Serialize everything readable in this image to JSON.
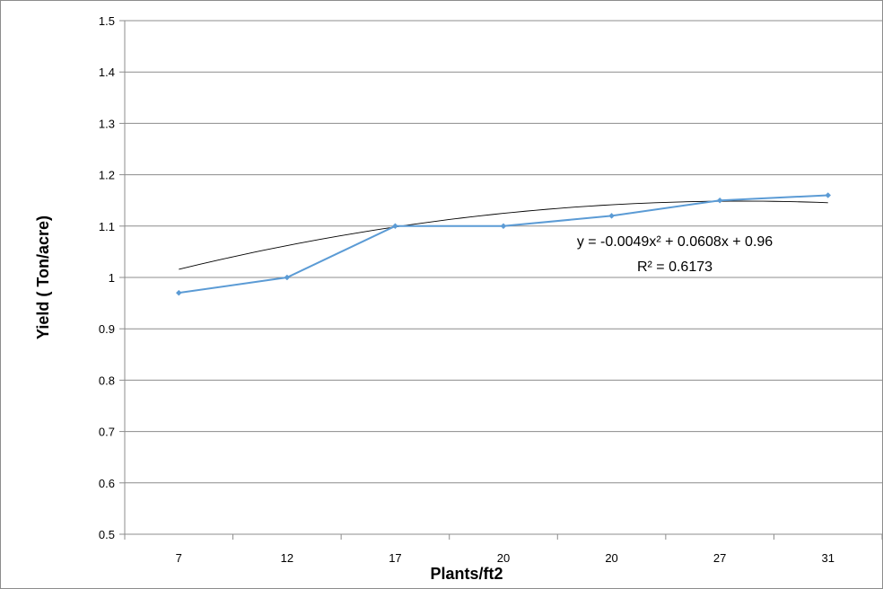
{
  "chart_data": {
    "type": "line",
    "categories": [
      "7",
      "12",
      "17",
      "20",
      "20",
      "27",
      "31"
    ],
    "series": [
      {
        "values": [
          0.97,
          1.0,
          1.1,
          1.1,
          1.12,
          1.15,
          1.16
        ],
        "color": "#5b9bd5"
      }
    ],
    "trendline": {
      "type": "polynomial",
      "order": 2,
      "coefficients": {
        "a": -0.0049,
        "b": 0.0608,
        "c": 0.96
      },
      "color": "#000000"
    },
    "xlabel": "Plants/ft2",
    "ylabel": "Yield ( Ton/acre)",
    "ylim": [
      0.5,
      1.5
    ],
    "yticks": [
      "0.5",
      "0.6",
      "0.7",
      "0.8",
      "0.9",
      "1",
      "1.1",
      "1.2",
      "1.3",
      "1.4",
      "1.5"
    ],
    "grid": "horizontal",
    "annotations": {
      "equation": "y = -0.0049x² + 0.0608x + 0.96",
      "r_squared": "R² = 0.6173"
    }
  }
}
